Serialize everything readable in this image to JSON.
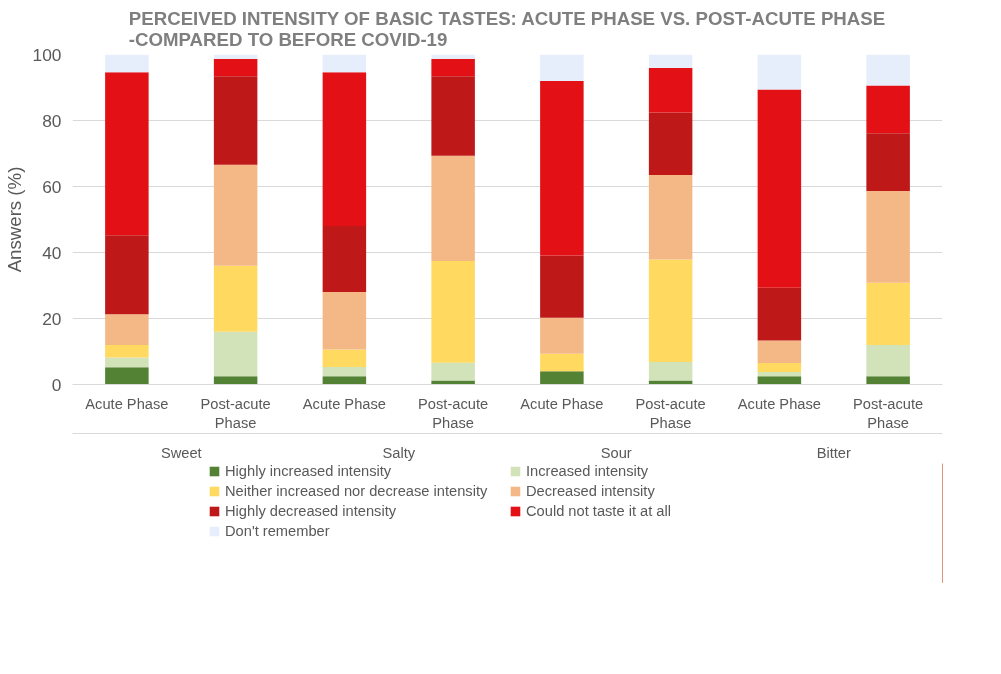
{
  "chart_data": {
    "type": "bar",
    "stacked": true,
    "title": "PERCEIVED INTENSITY OF BASIC TASTES: ACUTE PHASE VS. POST-ACUTE PHASE\n-COMPARED TO BEFORE COVID-19",
    "ylabel": "Answers (%)",
    "categories": [
      "Acute Phase",
      "Post-acute Phase",
      "Acute Phase",
      "Post-acute Phase",
      "Acute Phase",
      "Post-acute Phase",
      "Acute Phase",
      "Post-acute Phase"
    ],
    "annotations": [
      "Sweet",
      "Salty",
      "Sour",
      "Bitter"
    ],
    "series": [
      {
        "name": "Highly increased intensity",
        "color": "#548235",
        "values": [
          5.2,
          2.5,
          2.5,
          1.2,
          4.0,
          1.2,
          2.5,
          2.5
        ]
      },
      {
        "name": "Increased intensity",
        "color": "#d2e3b9",
        "values": [
          3.0,
          13.5,
          2.8,
          5.4,
          0,
          5.6,
          1.3,
          9.5
        ]
      },
      {
        "name": "Neither increased nor decrease intensity",
        "color": "#ffd960",
        "values": [
          3.8,
          20.0,
          5.3,
          30.8,
          5.3,
          31.1,
          2.7,
          18.8
        ]
      },
      {
        "name": "Decreased intensity",
        "color": "#f4b887",
        "values": [
          9.3,
          30.6,
          17.4,
          31.9,
          10.9,
          25.6,
          6.8,
          27.8
        ]
      },
      {
        "name": "Highly decreased intensity",
        "color": "#be1818",
        "values": [
          23.9,
          26.8,
          20.0,
          24.1,
          18.9,
          18.9,
          16.0,
          17.5
        ]
      },
      {
        "name": "Could not taste it at all",
        "color": "#e31015",
        "values": [
          49.4,
          5.2,
          46.6,
          5.2,
          52.9,
          13.5,
          60.1,
          14.5
        ]
      },
      {
        "name": "Don't remember",
        "color": "#e5eefa",
        "values": [
          5.4,
          1.4,
          5.4,
          1.4,
          8.0,
          4.1,
          10.6,
          9.4
        ]
      }
    ],
    "ylim": [
      0,
      100
    ],
    "yticks": [
      0,
      20,
      40,
      60,
      80,
      100
    ],
    "grid": "y",
    "legend": "bottom"
  }
}
